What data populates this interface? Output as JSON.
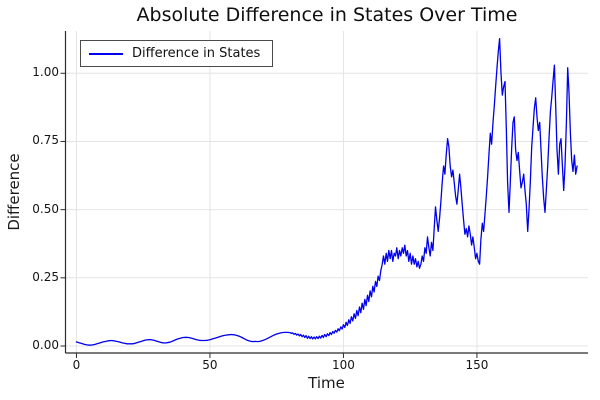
{
  "colors": {
    "series": "#0000ee",
    "grid": "#e4e4e4",
    "spine": "#2b2b2b",
    "background": "#ffffff"
  },
  "chart_data": {
    "type": "line",
    "title": "Absolute Difference in States Over Time",
    "xlabel": "Time",
    "ylabel": "Difference",
    "grid": true,
    "legend_position": "top-left",
    "xlim": [
      -4.1,
      191.6
    ],
    "ylim": [
      -0.0257,
      1.155
    ],
    "xticks": [
      {
        "label": "0",
        "value": 0
      },
      {
        "label": "50",
        "value": 50
      },
      {
        "label": "100",
        "value": 100
      },
      {
        "label": "150",
        "value": 150
      }
    ],
    "yticks": [
      {
        "label": "0.00",
        "value": 0
      },
      {
        "label": "0.25",
        "value": 0.25
      },
      {
        "label": "0.50",
        "value": 0.5
      },
      {
        "label": "0.75",
        "value": 0.75
      },
      {
        "label": "1.00",
        "value": 1.0
      }
    ],
    "series": [
      {
        "name": "Difference in States",
        "color": "#0000ee",
        "points": [
          [
            0,
            0.015
          ],
          [
            1,
            0.012
          ],
          [
            2,
            0.009
          ],
          [
            3,
            0.006
          ],
          [
            4,
            0.004
          ],
          [
            5,
            0.003
          ],
          [
            6,
            0.004
          ],
          [
            7,
            0.006
          ],
          [
            8,
            0.009
          ],
          [
            9,
            0.012
          ],
          [
            10,
            0.015
          ],
          [
            11,
            0.017
          ],
          [
            12,
            0.019
          ],
          [
            13,
            0.02
          ],
          [
            14,
            0.019
          ],
          [
            15,
            0.017
          ],
          [
            16,
            0.015
          ],
          [
            17,
            0.012
          ],
          [
            18,
            0.01
          ],
          [
            19,
            0.008
          ],
          [
            20,
            0.008
          ],
          [
            21,
            0.008
          ],
          [
            22,
            0.01
          ],
          [
            23,
            0.013
          ],
          [
            24,
            0.016
          ],
          [
            25,
            0.019
          ],
          [
            26,
            0.022
          ],
          [
            27,
            0.023
          ],
          [
            28,
            0.023
          ],
          [
            29,
            0.021
          ],
          [
            30,
            0.018
          ],
          [
            31,
            0.015
          ],
          [
            32,
            0.012
          ],
          [
            33,
            0.011
          ],
          [
            34,
            0.012
          ],
          [
            35,
            0.014
          ],
          [
            36,
            0.018
          ],
          [
            37,
            0.022
          ],
          [
            38,
            0.026
          ],
          [
            39,
            0.029
          ],
          [
            40,
            0.031
          ],
          [
            41,
            0.032
          ],
          [
            42,
            0.031
          ],
          [
            43,
            0.029
          ],
          [
            44,
            0.026
          ],
          [
            45,
            0.023
          ],
          [
            46,
            0.021
          ],
          [
            47,
            0.02
          ],
          [
            48,
            0.02
          ],
          [
            49,
            0.021
          ],
          [
            50,
            0.023
          ],
          [
            51,
            0.026
          ],
          [
            52,
            0.029
          ],
          [
            53,
            0.032
          ],
          [
            54,
            0.035
          ],
          [
            55,
            0.038
          ],
          [
            56,
            0.04
          ],
          [
            57,
            0.041
          ],
          [
            58,
            0.042
          ],
          [
            59,
            0.041
          ],
          [
            60,
            0.039
          ],
          [
            61,
            0.036
          ],
          [
            62,
            0.031
          ],
          [
            63,
            0.026
          ],
          [
            64,
            0.021
          ],
          [
            65,
            0.018
          ],
          [
            66,
            0.016
          ],
          [
            67,
            0.017
          ],
          [
            68,
            0.016
          ],
          [
            69,
            0.018
          ],
          [
            70,
            0.021
          ],
          [
            71,
            0.025
          ],
          [
            72,
            0.03
          ],
          [
            73,
            0.035
          ],
          [
            74,
            0.04
          ],
          [
            75,
            0.044
          ],
          [
            76,
            0.047
          ],
          [
            77,
            0.049
          ],
          [
            78,
            0.05
          ],
          [
            79,
            0.05
          ],
          [
            80,
            0.049
          ],
          [
            80.5,
            0.046
          ],
          [
            81,
            0.048
          ],
          [
            81.5,
            0.043
          ],
          [
            82,
            0.046
          ],
          [
            82.5,
            0.04
          ],
          [
            83,
            0.044
          ],
          [
            83.5,
            0.037
          ],
          [
            84,
            0.042
          ],
          [
            84.5,
            0.034
          ],
          [
            85,
            0.04
          ],
          [
            85.5,
            0.031
          ],
          [
            86,
            0.038
          ],
          [
            86.5,
            0.028
          ],
          [
            87,
            0.036
          ],
          [
            87.5,
            0.027
          ],
          [
            88,
            0.034
          ],
          [
            88.5,
            0.026
          ],
          [
            89,
            0.033
          ],
          [
            89.5,
            0.026
          ],
          [
            90,
            0.034
          ],
          [
            90.5,
            0.027
          ],
          [
            91,
            0.036
          ],
          [
            91.5,
            0.029
          ],
          [
            92,
            0.039
          ],
          [
            92.5,
            0.031
          ],
          [
            93,
            0.042
          ],
          [
            93.5,
            0.034
          ],
          [
            94,
            0.045
          ],
          [
            94.5,
            0.038
          ],
          [
            95,
            0.049
          ],
          [
            95.5,
            0.042
          ],
          [
            96,
            0.053
          ],
          [
            96.5,
            0.047
          ],
          [
            97,
            0.057
          ],
          [
            97.5,
            0.051
          ],
          [
            98,
            0.063
          ],
          [
            98.5,
            0.056
          ],
          [
            99,
            0.07
          ],
          [
            99.5,
            0.062
          ],
          [
            100,
            0.078
          ],
          [
            100.5,
            0.068
          ],
          [
            101,
            0.087
          ],
          [
            101.5,
            0.075
          ],
          [
            102,
            0.096
          ],
          [
            102.5,
            0.083
          ],
          [
            103,
            0.107
          ],
          [
            103.5,
            0.092
          ],
          [
            104,
            0.118
          ],
          [
            104.5,
            0.101
          ],
          [
            105,
            0.13
          ],
          [
            105.5,
            0.111
          ],
          [
            106,
            0.143
          ],
          [
            106.5,
            0.122
          ],
          [
            107,
            0.157
          ],
          [
            107.5,
            0.134
          ],
          [
            108,
            0.171
          ],
          [
            108.5,
            0.148
          ],
          [
            109,
            0.186
          ],
          [
            109.5,
            0.163
          ],
          [
            110,
            0.202
          ],
          [
            110.5,
            0.18
          ],
          [
            111,
            0.219
          ],
          [
            111.5,
            0.198
          ],
          [
            112,
            0.237
          ],
          [
            112.5,
            0.218
          ],
          [
            113,
            0.256
          ],
          [
            113.5,
            0.24
          ],
          [
            114,
            0.276
          ],
          [
            114.5,
            0.3
          ],
          [
            115,
            0.33
          ],
          [
            115.5,
            0.3
          ],
          [
            116,
            0.34
          ],
          [
            116.5,
            0.31
          ],
          [
            117,
            0.35
          ],
          [
            117.5,
            0.32
          ],
          [
            118,
            0.35
          ],
          [
            118.5,
            0.31
          ],
          [
            119,
            0.34
          ],
          [
            119.5,
            0.33
          ],
          [
            120,
            0.36
          ],
          [
            120.5,
            0.32
          ],
          [
            121,
            0.35
          ],
          [
            121.5,
            0.33
          ],
          [
            122,
            0.36
          ],
          [
            122.5,
            0.34
          ],
          [
            123,
            0.37
          ],
          [
            123.5,
            0.33
          ],
          [
            124,
            0.35
          ],
          [
            124.5,
            0.31
          ],
          [
            125,
            0.34
          ],
          [
            125.5,
            0.3
          ],
          [
            126,
            0.33
          ],
          [
            126.5,
            0.3
          ],
          [
            127,
            0.32
          ],
          [
            127.5,
            0.29
          ],
          [
            128,
            0.31
          ],
          [
            128.5,
            0.285
          ],
          [
            129,
            0.3
          ],
          [
            129.5,
            0.33
          ],
          [
            130,
            0.31
          ],
          [
            130.5,
            0.36
          ],
          [
            131,
            0.34
          ],
          [
            131.5,
            0.4
          ],
          [
            132,
            0.36
          ],
          [
            132.5,
            0.33
          ],
          [
            133,
            0.38
          ],
          [
            133.5,
            0.35
          ],
          [
            134,
            0.43
          ],
          [
            134.5,
            0.51
          ],
          [
            135,
            0.46
          ],
          [
            135.5,
            0.42
          ],
          [
            136,
            0.47
          ],
          [
            136.5,
            0.53
          ],
          [
            137,
            0.6
          ],
          [
            137.5,
            0.66
          ],
          [
            138,
            0.63
          ],
          [
            138.5,
            0.7
          ],
          [
            139,
            0.76
          ],
          [
            139.5,
            0.73
          ],
          [
            140,
            0.66
          ],
          [
            140.5,
            0.62
          ],
          [
            141,
            0.645
          ],
          [
            141.5,
            0.6
          ],
          [
            142,
            0.55
          ],
          [
            142.5,
            0.52
          ],
          [
            143,
            0.57
          ],
          [
            143.5,
            0.63
          ],
          [
            144,
            0.58
          ],
          [
            144.5,
            0.52
          ],
          [
            145,
            0.46
          ],
          [
            145.5,
            0.41
          ],
          [
            146,
            0.43
          ],
          [
            146.5,
            0.4
          ],
          [
            147,
            0.44
          ],
          [
            147.5,
            0.41
          ],
          [
            148,
            0.37
          ],
          [
            148.5,
            0.4
          ],
          [
            149,
            0.36
          ],
          [
            149.5,
            0.32
          ],
          [
            150,
            0.34
          ],
          [
            150.5,
            0.31
          ],
          [
            151,
            0.3
          ],
          [
            151.5,
            0.39
          ],
          [
            152,
            0.45
          ],
          [
            152.5,
            0.42
          ],
          [
            153,
            0.48
          ],
          [
            153.5,
            0.55
          ],
          [
            154,
            0.62
          ],
          [
            154.5,
            0.7
          ],
          [
            155,
            0.78
          ],
          [
            155.5,
            0.74
          ],
          [
            156,
            0.82
          ],
          [
            156.5,
            0.88
          ],
          [
            157,
            0.95
          ],
          [
            157.5,
            1.02
          ],
          [
            158,
            1.08
          ],
          [
            158.5,
            1.127
          ],
          [
            159,
            1.0
          ],
          [
            159.5,
            0.92
          ],
          [
            160,
            0.95
          ],
          [
            160.5,
            0.97
          ],
          [
            161,
            0.8
          ],
          [
            161.5,
            0.6
          ],
          [
            162,
            0.49
          ],
          [
            162.5,
            0.6
          ],
          [
            163,
            0.72
          ],
          [
            163.5,
            0.82
          ],
          [
            164,
            0.84
          ],
          [
            164.5,
            0.72
          ],
          [
            165,
            0.68
          ],
          [
            165.5,
            0.71
          ],
          [
            166,
            0.64
          ],
          [
            166.5,
            0.58
          ],
          [
            167,
            0.6
          ],
          [
            167.5,
            0.63
          ],
          [
            168,
            0.57
          ],
          [
            168.5,
            0.52
          ],
          [
            169,
            0.42
          ],
          [
            169.5,
            0.5
          ],
          [
            170,
            0.6
          ],
          [
            170.5,
            0.73
          ],
          [
            171,
            0.8
          ],
          [
            171.5,
            0.87
          ],
          [
            172,
            0.91
          ],
          [
            172.5,
            0.84
          ],
          [
            173,
            0.79
          ],
          [
            173.5,
            0.82
          ],
          [
            174,
            0.72
          ],
          [
            174.5,
            0.62
          ],
          [
            175,
            0.54
          ],
          [
            175.5,
            0.49
          ],
          [
            176,
            0.57
          ],
          [
            176.5,
            0.66
          ],
          [
            177,
            0.76
          ],
          [
            177.5,
            0.86
          ],
          [
            178,
            0.91
          ],
          [
            178.5,
            0.97
          ],
          [
            179,
            1.03
          ],
          [
            179.5,
            0.88
          ],
          [
            180,
            0.72
          ],
          [
            180.5,
            0.63
          ],
          [
            181,
            0.74
          ],
          [
            181.5,
            0.76
          ],
          [
            182,
            0.66
          ],
          [
            182.5,
            0.57
          ],
          [
            183,
            0.66
          ],
          [
            183.5,
            0.82
          ],
          [
            184,
            1.02
          ],
          [
            184.5,
            0.93
          ],
          [
            185,
            0.78
          ],
          [
            185.5,
            0.68
          ],
          [
            186,
            0.64
          ],
          [
            186.5,
            0.7
          ],
          [
            187,
            0.63
          ],
          [
            187.5,
            0.66
          ]
        ]
      }
    ]
  }
}
